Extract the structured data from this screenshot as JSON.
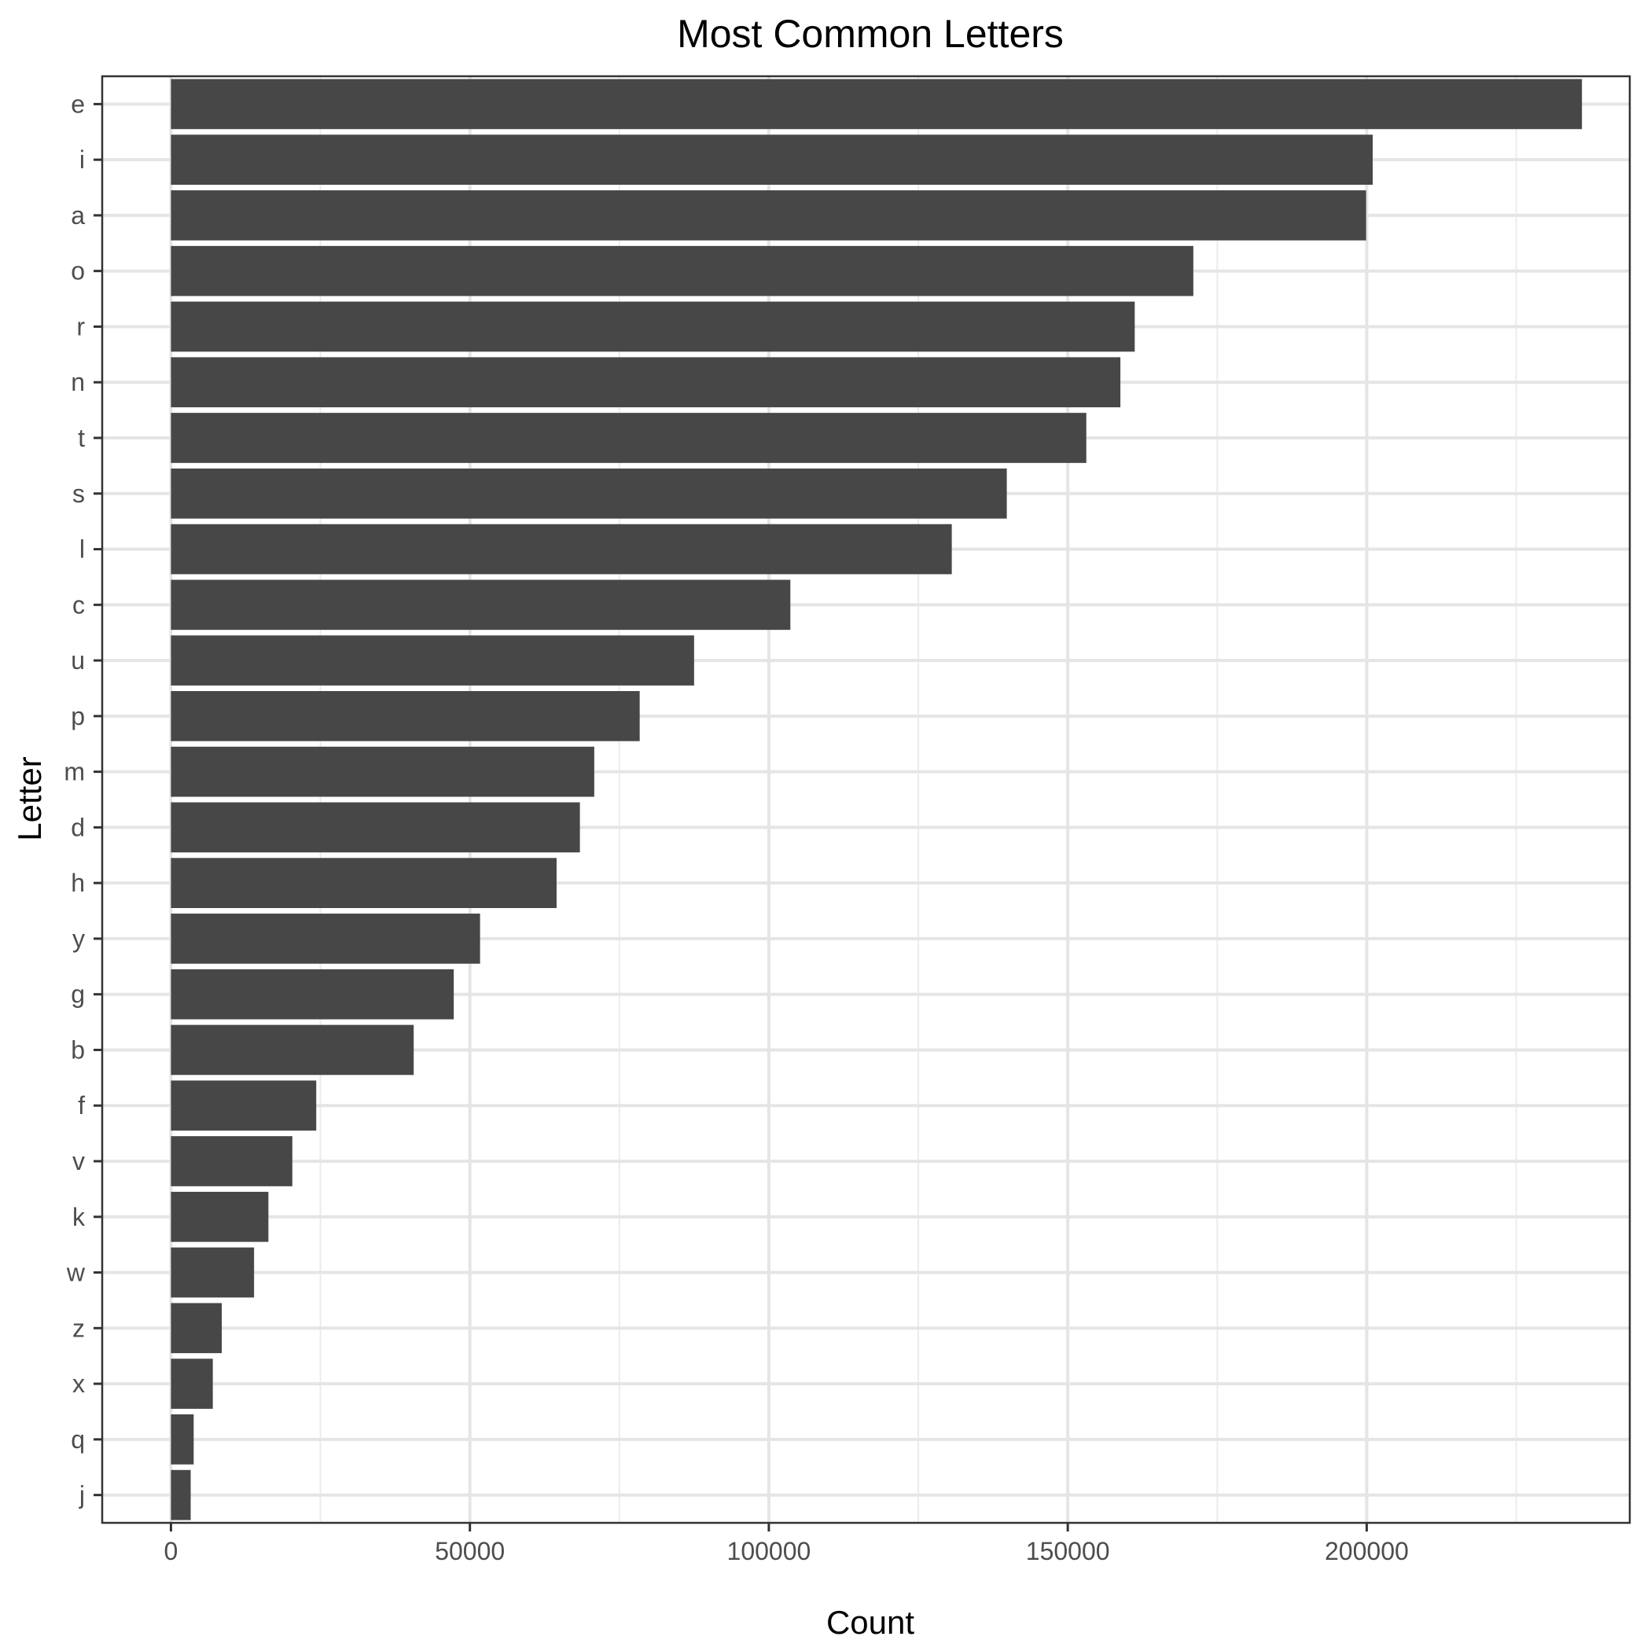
{
  "chart_data": {
    "type": "bar",
    "orientation": "horizontal",
    "title": "Most Common Letters",
    "xlabel": "Count",
    "ylabel": "Letter",
    "categories": [
      "e",
      "i",
      "a",
      "o",
      "r",
      "n",
      "t",
      "s",
      "l",
      "c",
      "u",
      "p",
      "m",
      "d",
      "h",
      "y",
      "g",
      "b",
      "f",
      "v",
      "k",
      "w",
      "z",
      "x",
      "q",
      "j"
    ],
    "values": [
      236000,
      201000,
      199900,
      171000,
      161200,
      158800,
      153100,
      139800,
      130600,
      103600,
      87500,
      78400,
      70800,
      68400,
      64500,
      51700,
      47300,
      40600,
      24300,
      20300,
      16300,
      13900,
      8500,
      7000,
      3800,
      3300
    ],
    "xlim": [
      -11500,
      244000
    ],
    "x_ticks": [
      0,
      50000,
      100000,
      150000,
      200000
    ],
    "x_tick_labels": [
      "0",
      "50000",
      "100000",
      "150000",
      "200000"
    ],
    "grid": true,
    "legend": "none",
    "colors": {
      "bar": "#474747",
      "grid": "#e5e5e5",
      "axis": "#333333",
      "tick_text": "#4d4d4d"
    }
  }
}
